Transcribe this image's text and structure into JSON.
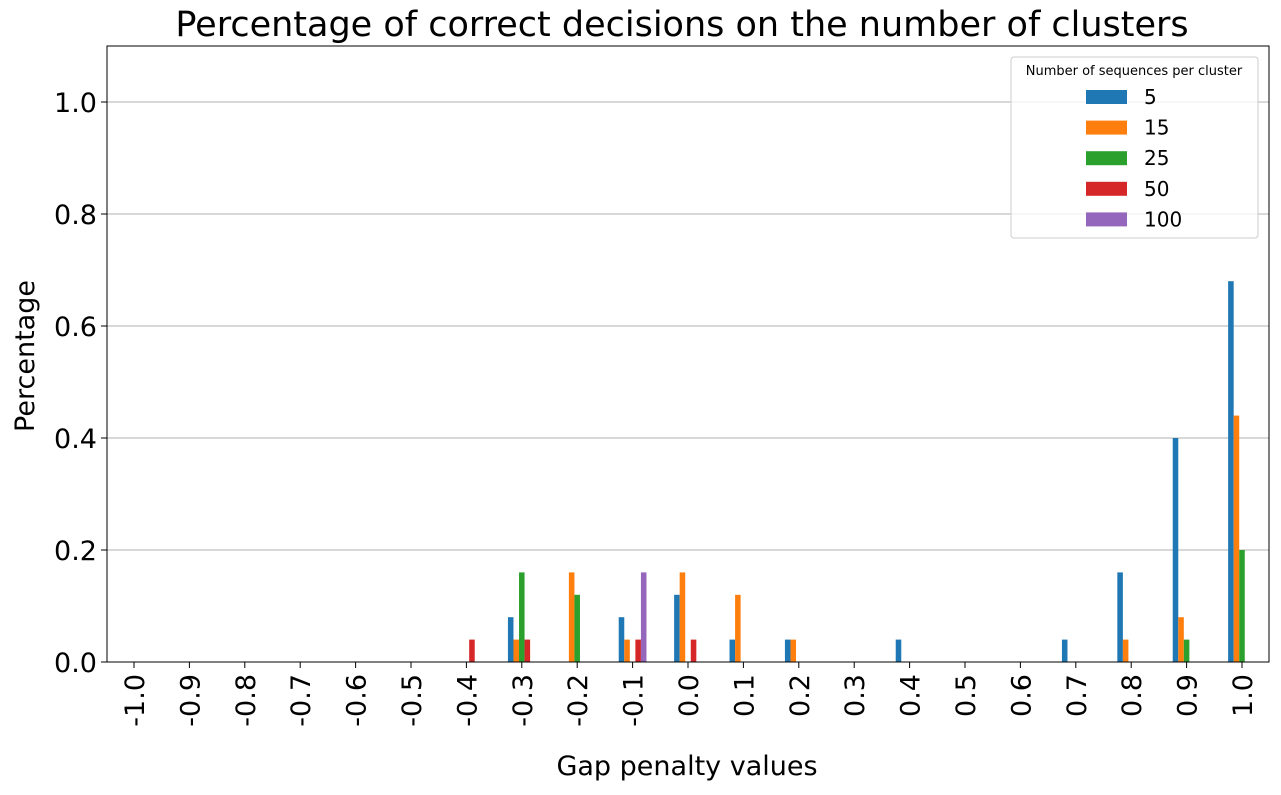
{
  "chart_data": {
    "type": "bar",
    "title": "Percentage of correct decisions on the number of clusters",
    "xlabel": "Gap penalty values",
    "ylabel": "Percentage",
    "ylim": [
      0,
      1.1
    ],
    "yticks": [
      "0.0",
      "0.2",
      "0.4",
      "0.6",
      "0.8",
      "1.0"
    ],
    "grid": "horizontal",
    "legend_title": "Number of sequences per cluster",
    "legend_position": "top-right",
    "categories": [
      "-1.0",
      "-0.9",
      "-0.8",
      "-0.7",
      "-0.6",
      "-0.5",
      "-0.4",
      "-0.3",
      "-0.2",
      "-0.1",
      "0.0",
      "0.1",
      "0.2",
      "0.3",
      "0.4",
      "0.5",
      "0.6",
      "0.7",
      "0.8",
      "0.9",
      "1.0"
    ],
    "series": [
      {
        "name": "5",
        "color": "#1f77b4",
        "values": [
          0,
          0,
          0,
          0,
          0,
          0,
          0,
          0.08,
          0,
          0.08,
          0.12,
          0.04,
          0.04,
          0,
          0.04,
          0,
          0,
          0.04,
          0.16,
          0.4,
          0.68
        ]
      },
      {
        "name": "15",
        "color": "#ff7f0e",
        "values": [
          0,
          0,
          0,
          0,
          0,
          0,
          0,
          0.04,
          0.16,
          0.04,
          0.16,
          0.12,
          0.04,
          0,
          0,
          0,
          0,
          0,
          0.04,
          0.08,
          0.44
        ]
      },
      {
        "name": "25",
        "color": "#2ca02c",
        "values": [
          0,
          0,
          0,
          0,
          0,
          0,
          0,
          0.16,
          0.12,
          0,
          0,
          0,
          0,
          0,
          0,
          0,
          0,
          0,
          0,
          0.04,
          0.2
        ]
      },
      {
        "name": "50",
        "color": "#d62728",
        "values": [
          0,
          0,
          0,
          0,
          0,
          0,
          0.04,
          0.04,
          0,
          0.04,
          0.04,
          0,
          0,
          0,
          0,
          0,
          0,
          0,
          0,
          0,
          0
        ]
      },
      {
        "name": "100",
        "color": "#9467bd",
        "values": [
          0,
          0,
          0,
          0,
          0,
          0,
          0,
          0,
          0,
          0.16,
          0,
          0,
          0,
          0,
          0,
          0,
          0,
          0,
          0,
          0,
          0
        ]
      }
    ]
  }
}
